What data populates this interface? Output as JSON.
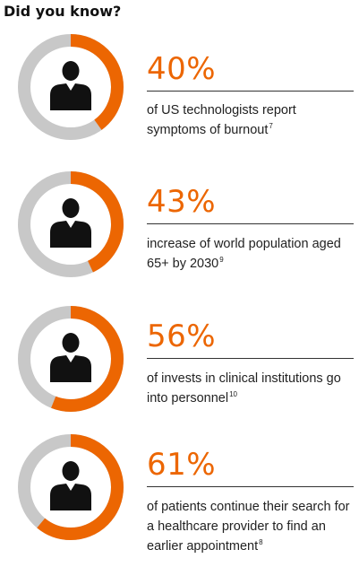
{
  "heading": "Did you know?",
  "colors": {
    "accent": "#ec6602",
    "track": "#c8c8c8",
    "icon": "#111111"
  },
  "icon": "person-silhouette-icon",
  "stats": [
    {
      "value": "40%",
      "fraction": 0.4,
      "text": "of US technologists report symptoms of burnout",
      "footnote": "7"
    },
    {
      "value": "43%",
      "fraction": 0.43,
      "text": "increase of world population aged 65+ by 2030",
      "footnote": "9"
    },
    {
      "value": "56%",
      "fraction": 0.56,
      "text": "of invests in clinical institutions go into personnel",
      "footnote": "10"
    },
    {
      "value": "61%",
      "fraction": 0.61,
      "text": "of patients continue their search for a healthcare provider to find an earlier appointment",
      "footnote": "8"
    }
  ]
}
